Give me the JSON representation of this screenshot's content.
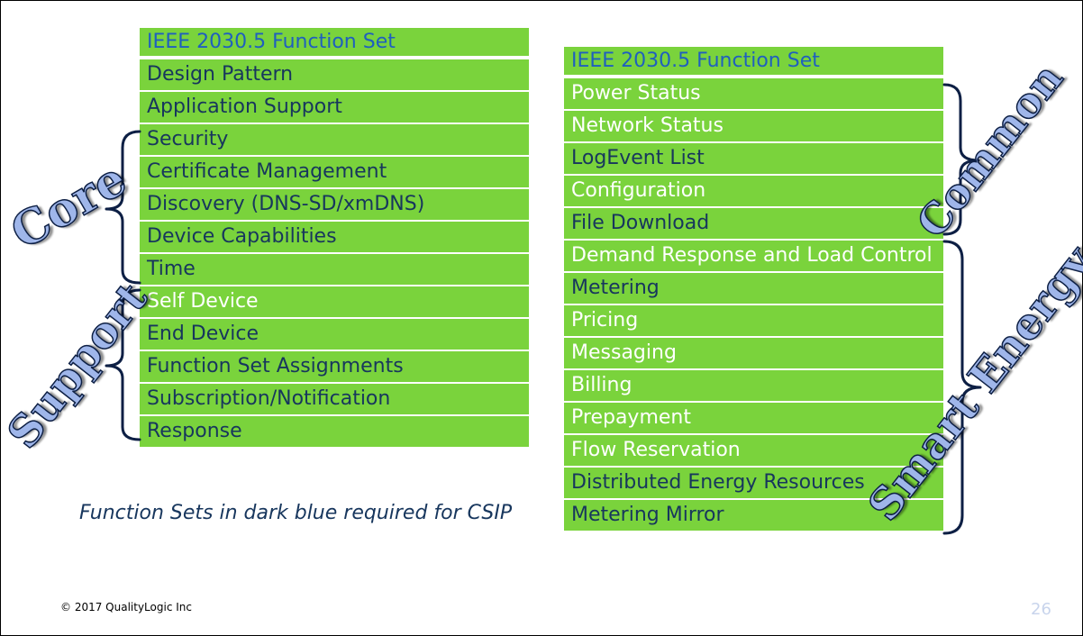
{
  "left_table": {
    "header": "IEEE 2030.5 Function Set",
    "rows": [
      {
        "label": "Design Pattern"
      },
      {
        "label": "Application Support"
      },
      {
        "label": "Security"
      },
      {
        "label": "Certificate Management"
      },
      {
        "label": "Discovery (DNS-SD/xmDNS)"
      },
      {
        "label": "Device Capabilities"
      },
      {
        "label": "Time"
      },
      {
        "label": "Self Device"
      },
      {
        "label": "End Device"
      },
      {
        "label": "Function Set Assignments"
      },
      {
        "label": "Subscription/Notification"
      },
      {
        "label": "Response"
      }
    ]
  },
  "right_table": {
    "header": "IEEE 2030.5 Function Set",
    "rows": [
      {
        "label": "Power Status"
      },
      {
        "label": "Network Status"
      },
      {
        "label": "LogEvent List"
      },
      {
        "label": "Configuration"
      },
      {
        "label": "File Download"
      },
      {
        "label": "Demand Response and Load Control"
      },
      {
        "label": "Metering"
      },
      {
        "label": "Pricing"
      },
      {
        "label": "Messaging"
      },
      {
        "label": "Billing"
      },
      {
        "label": "Prepayment"
      },
      {
        "label": "Flow Reservation"
      },
      {
        "label": "Distributed Energy Resources"
      },
      {
        "label": "Metering Mirror"
      }
    ]
  },
  "group_labels": {
    "core": "Core",
    "support": "Support",
    "common": "Common",
    "smart_energy": "Smart Energy"
  },
  "note": "Function Sets in dark blue required for CSIP",
  "footer": "© 2017 QualityLogic Inc",
  "page_number": "26",
  "colors": {
    "row_green": "#7ad33c",
    "required_dark_blue": "#17365d",
    "header_blue": "#1f5fbf",
    "optional_white": "#ffffff"
  }
}
